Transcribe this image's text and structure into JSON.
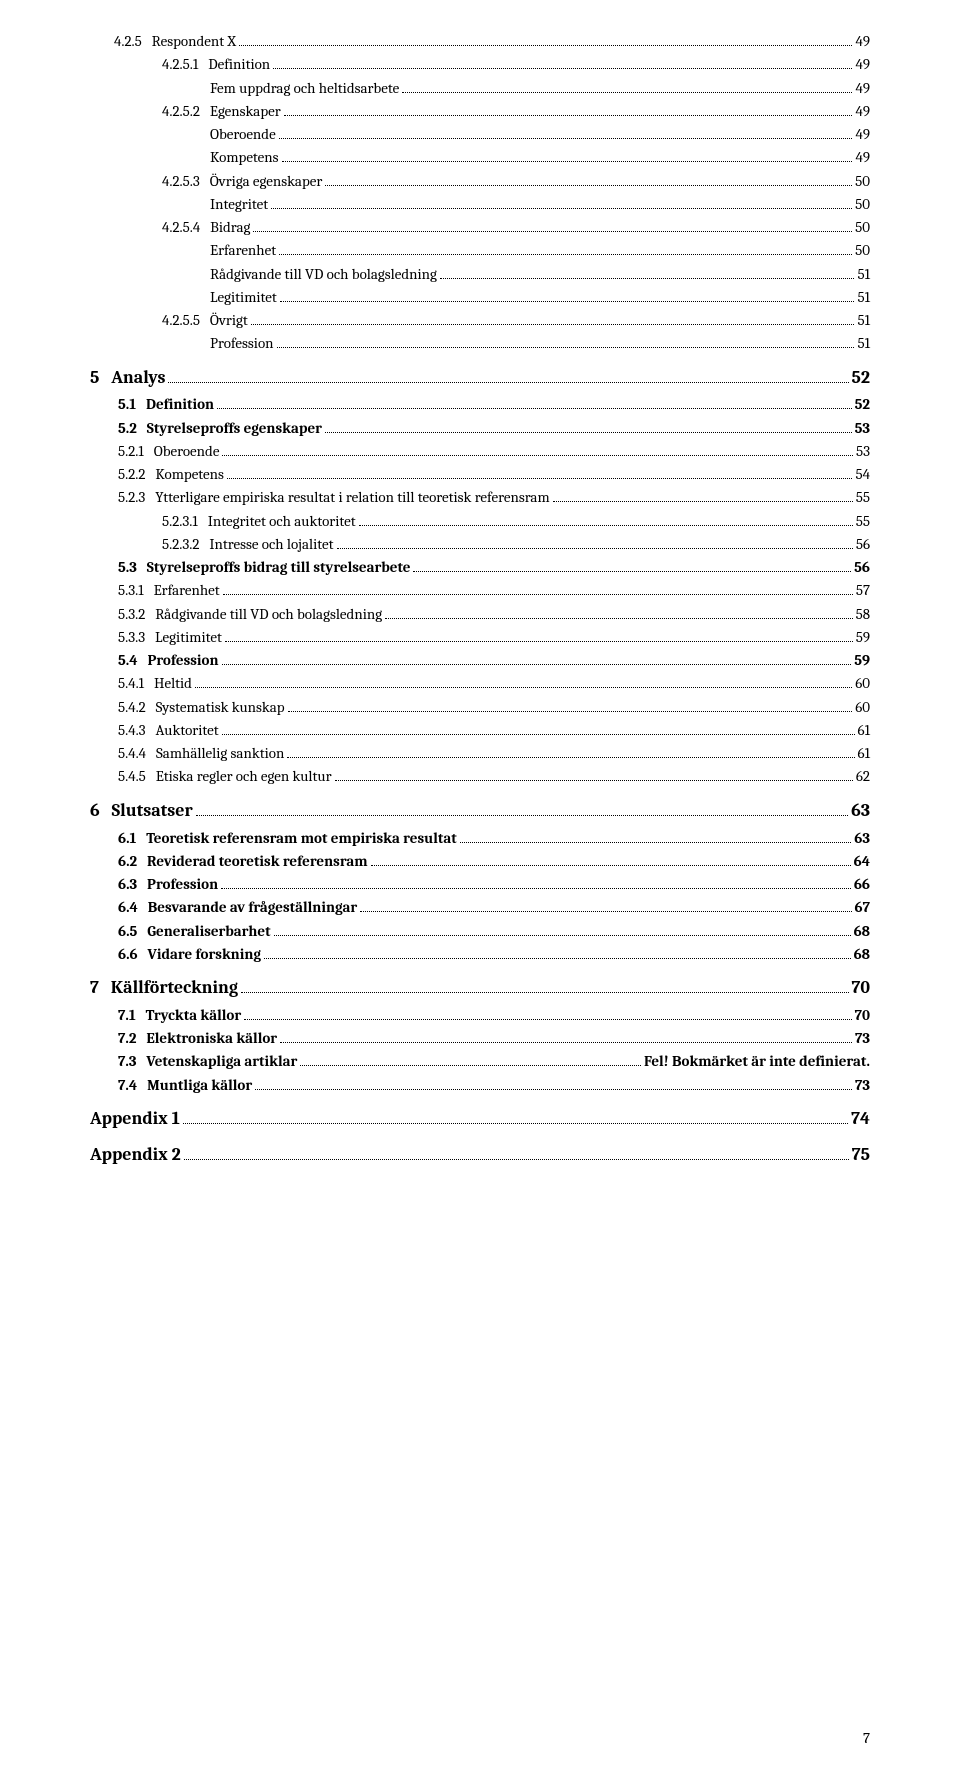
{
  "entries": [
    {
      "num": "4.2.5",
      "title": "Respondent X",
      "page": "49",
      "level": 0,
      "style": "plain",
      "gap": "   "
    },
    {
      "num": "4.2.5.1",
      "title": "Definition",
      "page": "49",
      "level": 1,
      "style": "plain",
      "gap": "   "
    },
    {
      "num": "",
      "title": "Fem uppdrag och heltidsarbete",
      "page": "49",
      "level": 2,
      "style": "plain",
      "gap": ""
    },
    {
      "num": "4.2.5.2",
      "title": "Egenskaper",
      "page": "49",
      "level": 1,
      "style": "plain",
      "gap": "   "
    },
    {
      "num": "",
      "title": "Oberoende",
      "page": "49",
      "level": 2,
      "style": "plain",
      "gap": ""
    },
    {
      "num": "",
      "title": "Kompetens",
      "page": "49",
      "level": 2,
      "style": "plain",
      "gap": ""
    },
    {
      "num": "4.2.5.3",
      "title": "Övriga egenskaper",
      "page": "50",
      "level": 1,
      "style": "plain",
      "gap": "   "
    },
    {
      "num": "",
      "title": "Integritet",
      "page": "50",
      "level": 2,
      "style": "plain",
      "gap": ""
    },
    {
      "num": "4.2.5.4",
      "title": "Bidrag",
      "page": "50",
      "level": 1,
      "style": "plain",
      "gap": "   "
    },
    {
      "num": "",
      "title": "Erfarenhet",
      "page": "50",
      "level": 2,
      "style": "plain",
      "gap": ""
    },
    {
      "num": "",
      "title": "Rådgivande till VD och bolagsledning",
      "page": "51",
      "level": 2,
      "style": "plain",
      "gap": ""
    },
    {
      "num": "",
      "title": "Legitimitet",
      "page": "51",
      "level": 2,
      "style": "plain",
      "gap": ""
    },
    {
      "num": "4.2.5.5",
      "title": "Övrigt",
      "page": "51",
      "level": 1,
      "style": "plain",
      "gap": "   "
    },
    {
      "num": "",
      "title": "Profession",
      "page": "51",
      "level": 2,
      "style": "plain",
      "gap": ""
    },
    {
      "num": "5",
      "title": "Analys",
      "page": "52",
      "level": 0,
      "style": "h1",
      "gap": "   "
    },
    {
      "num": "5.1",
      "title": "Definition",
      "page": "52",
      "level": 1,
      "style": "h2",
      "gap": "   "
    },
    {
      "num": "5.2",
      "title": "Styrelseproffs egenskaper",
      "page": "53",
      "level": 1,
      "style": "h2",
      "gap": "   "
    },
    {
      "num": "5.2.1",
      "title": "Oberoende",
      "page": "53",
      "level": 1,
      "style": "h3",
      "gap": "   "
    },
    {
      "num": "5.2.2",
      "title": "Kompetens",
      "page": "54",
      "level": 1,
      "style": "h3",
      "gap": "   "
    },
    {
      "num": "5.2.3",
      "title": "Ytterligare empiriska resultat i relation till teoretisk referensram",
      "page": "55",
      "level": 1,
      "style": "h3",
      "gap": "   "
    },
    {
      "num": "5.2.3.1",
      "title": "Integritet och auktoritet",
      "page": "55",
      "level": 1,
      "style": "plain",
      "gap": "   "
    },
    {
      "num": "5.2.3.2",
      "title": "Intresse och lojalitet",
      "page": "56",
      "level": 1,
      "style": "plain",
      "gap": "   "
    },
    {
      "num": "5.3",
      "title": "Styrelseproffs bidrag till styrelsearbete",
      "page": "56",
      "level": 1,
      "style": "h2",
      "gap": "   "
    },
    {
      "num": "5.3.1",
      "title": "Erfarenhet",
      "page": "57",
      "level": 1,
      "style": "h3",
      "gap": "   "
    },
    {
      "num": "5.3.2",
      "title": "Rådgivande till VD och bolagsledning",
      "page": "58",
      "level": 1,
      "style": "h3",
      "gap": "   "
    },
    {
      "num": "5.3.3",
      "title": "Legitimitet",
      "page": "59",
      "level": 1,
      "style": "h3",
      "gap": "   "
    },
    {
      "num": "5.4",
      "title": "Profession",
      "page": "59",
      "level": 1,
      "style": "h2",
      "gap": "   "
    },
    {
      "num": "5.4.1",
      "title": "Heltid",
      "page": "60",
      "level": 1,
      "style": "h3",
      "gap": "   "
    },
    {
      "num": "5.4.2",
      "title": "Systematisk kunskap",
      "page": "60",
      "level": 1,
      "style": "h3",
      "gap": "   "
    },
    {
      "num": "5.4.3",
      "title": "Auktoritet",
      "page": "61",
      "level": 1,
      "style": "h3",
      "gap": "   "
    },
    {
      "num": "5.4.4",
      "title": "Samhällelig sanktion",
      "page": "61",
      "level": 1,
      "style": "h3",
      "gap": "   "
    },
    {
      "num": "5.4.5",
      "title": "Etiska regler och egen kultur",
      "page": "62",
      "level": 1,
      "style": "h3",
      "gap": "   "
    },
    {
      "num": "6",
      "title": "Slutsatser",
      "page": "63",
      "level": 0,
      "style": "h1",
      "gap": "   "
    },
    {
      "num": "6.1",
      "title": "Teoretisk referensram mot empiriska resultat",
      "page": "63",
      "level": 1,
      "style": "h2",
      "gap": "   "
    },
    {
      "num": "6.2",
      "title": "Reviderad teoretisk referensram",
      "page": "64",
      "level": 1,
      "style": "h2",
      "gap": "   "
    },
    {
      "num": "6.3",
      "title": "Profession",
      "page": "66",
      "level": 1,
      "style": "h2",
      "gap": "   "
    },
    {
      "num": "6.4",
      "title": "Besvarande av frågeställningar",
      "page": "67",
      "level": 1,
      "style": "h2",
      "gap": "   "
    },
    {
      "num": "6.5",
      "title": "Generaliserbarhet",
      "page": "68",
      "level": 1,
      "style": "h2",
      "gap": "   "
    },
    {
      "num": "6.6",
      "title": "Vidare forskning",
      "page": "68",
      "level": 1,
      "style": "h2",
      "gap": "   "
    },
    {
      "num": "7",
      "title": "Källförteckning",
      "page": "70",
      "level": 0,
      "style": "h1",
      "gap": "   "
    },
    {
      "num": "7.1",
      "title": "Tryckta källor",
      "page": "70",
      "level": 1,
      "style": "h2",
      "gap": "   "
    },
    {
      "num": "7.2",
      "title": "Elektroniska källor",
      "page": "73",
      "level": 1,
      "style": "h2",
      "gap": "   "
    },
    {
      "num": "7.3",
      "title": "Vetenskapliga artiklar",
      "page": "Fel! Bokmärket är inte definierat.",
      "level": 1,
      "style": "h2",
      "gap": "   "
    },
    {
      "num": "7.4",
      "title": "Muntliga källor",
      "page": "73",
      "level": 1,
      "style": "h2",
      "gap": "   "
    },
    {
      "num": "",
      "title": "Appendix 1",
      "page": "74",
      "level": 0,
      "style": "h1",
      "gap": ""
    },
    {
      "num": "",
      "title": "Appendix 2",
      "page": "75",
      "level": 0,
      "style": "h1",
      "gap": ""
    }
  ],
  "page_number": "7"
}
